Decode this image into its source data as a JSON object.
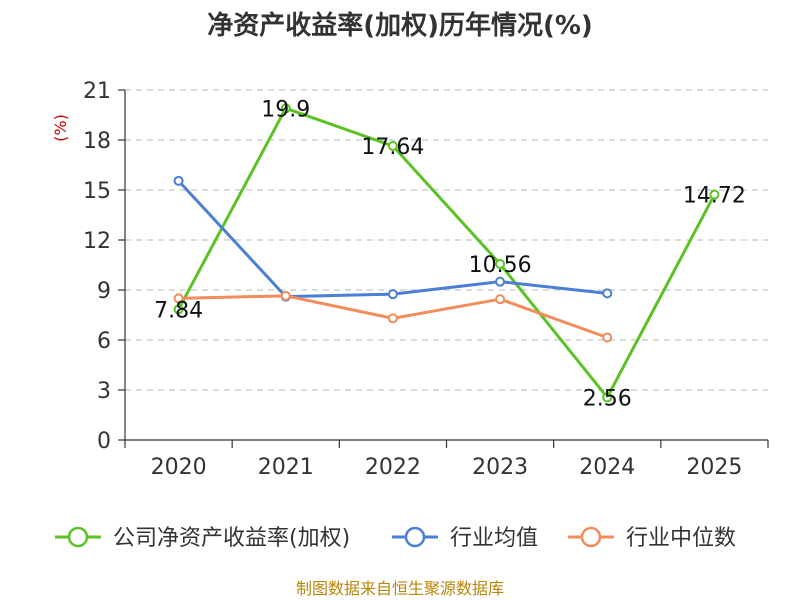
{
  "chart_data": {
    "type": "line",
    "title": "净资产收益率(加权)历年情况(%)",
    "ylabel": "(%)",
    "xlabel": "",
    "categories": [
      "2020",
      "2021",
      "2022",
      "2023",
      "2024",
      "2025"
    ],
    "ylim": [
      0,
      21
    ],
    "yticks": [
      0,
      3,
      6,
      9,
      12,
      15,
      18,
      21
    ],
    "grid": true,
    "legend_position": "bottom",
    "series": [
      {
        "name": "公司净资产收益率(加权)",
        "color": "#5bc225",
        "values": [
          7.84,
          19.9,
          17.64,
          10.56,
          2.56,
          14.72
        ],
        "labels": [
          "7.84",
          "19.9",
          "17.64",
          "10.56",
          "2.56",
          "14.72"
        ]
      },
      {
        "name": "行业均值",
        "color": "#4a7fd6",
        "values": [
          15.55,
          8.6,
          8.75,
          9.5,
          8.8,
          null
        ]
      },
      {
        "name": "行业中位数",
        "color": "#f28c5a",
        "values": [
          8.5,
          8.65,
          7.3,
          8.45,
          6.15,
          null
        ]
      }
    ]
  },
  "source": "制图数据来自恒生聚源数据库"
}
